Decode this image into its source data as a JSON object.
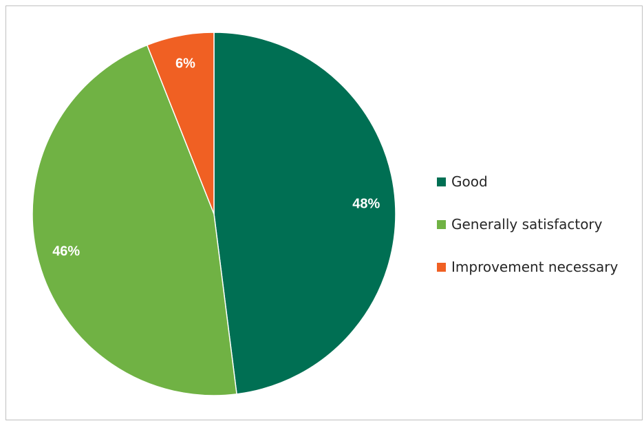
{
  "chart_data": {
    "type": "pie",
    "title": "",
    "slices": [
      {
        "name": "Good",
        "value": 48,
        "label": "48%",
        "color": "#006F53"
      },
      {
        "name": "Generally satisfactory",
        "value": 46,
        "label": "46%",
        "color": "#70B244"
      },
      {
        "name": "Improvement necessary",
        "value": 6,
        "label": "6%",
        "color": "#F06023"
      }
    ],
    "start_angle": "12 o'clock",
    "direction": "clockwise",
    "legend_placement": "right"
  }
}
